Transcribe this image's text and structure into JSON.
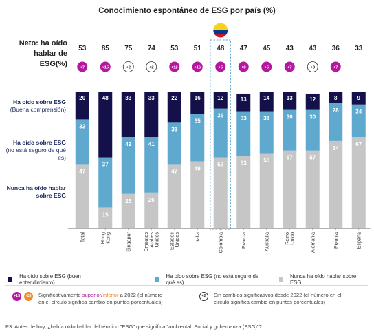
{
  "title": "Conocimiento espontáneo de ESG por país (%)",
  "neto_label": "Neto: ha oído hablar de ESG(%)",
  "row_labels": {
    "top": {
      "main": "Ha oído sobre ESG",
      "sub": "(Buena comprensión)"
    },
    "middle": {
      "main": "Ha oído sobre ESG",
      "sub": "(no está seguro de qué es)"
    },
    "bottom": {
      "main": "Nunca ha oído hablar sobre ESG",
      "sub": ""
    }
  },
  "colors": {
    "dark": "#14114a",
    "blue": "#5fa9cf",
    "gray": "#c6c6c6",
    "superior": "#b5179e",
    "inferior": "#f28c28",
    "highlight_border": "#5fa9cf"
  },
  "chart_data": {
    "type": "bar",
    "stacked": true,
    "categories": [
      "Total",
      "Hong Kong",
      "Singapur",
      "Emiratos Árabes Unidos",
      "Estados Unidos",
      "Italia",
      "Colombia",
      "Francia",
      "Australia",
      "Reino Unido",
      "Alemania",
      "Polonia",
      "España"
    ],
    "series": [
      {
        "name": "Nunca ha oído hablar sobre ESG",
        "values": [
          47,
          15,
          25,
          26,
          47,
          49,
          52,
          53,
          55,
          57,
          57,
          64,
          67
        ]
      },
      {
        "name": "Ha oído sobre ESG (no está seguro de qué es)",
        "values": [
          33,
          37,
          42,
          41,
          31,
          35,
          36,
          33,
          31,
          30,
          30,
          28,
          24
        ]
      },
      {
        "name": "Ha oído sobre ESG (buen entendimiento)",
        "values": [
          20,
          48,
          33,
          33,
          22,
          16,
          12,
          13,
          14,
          13,
          12,
          8,
          9
        ]
      }
    ],
    "neto": [
      53,
      85,
      75,
      74,
      53,
      51,
      48,
      47,
      45,
      43,
      43,
      36,
      33
    ],
    "changes": [
      {
        "label": "+7",
        "kind": "superior"
      },
      {
        "label": "+15",
        "kind": "superior"
      },
      {
        "label": "+2",
        "kind": "none"
      },
      {
        "label": "+2",
        "kind": "none"
      },
      {
        "label": "+12",
        "kind": "superior"
      },
      {
        "label": "+16",
        "kind": "superior"
      },
      {
        "label": "+5",
        "kind": "superior"
      },
      {
        "label": "+8",
        "kind": "superior"
      },
      {
        "label": "+5",
        "kind": "superior"
      },
      {
        "label": "+7",
        "kind": "superior"
      },
      {
        "label": "+3",
        "kind": "none"
      },
      {
        "label": "+7",
        "kind": "superior"
      },
      null
    ],
    "highlight": "Colombia",
    "ylim": [
      0,
      100
    ]
  },
  "legend": {
    "dark": "Ha oído sobre ESG (buen entendimiento)",
    "blue": "Ha oído sobre ESG (no está seguro de qué es)",
    "gray": "Nunca ha oído hablar sobre ESG"
  },
  "notes": {
    "sig_badge_sup": "+15",
    "sig_badge_inf": "-15",
    "sig_pre": "Significativamente ",
    "sig_superior": "superior",
    "sig_slash": "/",
    "sig_inferior": "inferior",
    "sig_line1_post": " a 2022 (el número",
    "sig_line2": "en el círculo significa cambio en puntos porcentuales)",
    "nochange_badge": "+2",
    "nochange_line1": "Sin cambios significativos desde 2022 (el número en el",
    "nochange_line2": "círculo significa cambio en puntos porcentuales)"
  },
  "footnote": "P3. Antes de hoy, ¿había oído hablar del término \"ESG\" que significa \"ambiental, Social y gobemanza (ESG)\"?"
}
